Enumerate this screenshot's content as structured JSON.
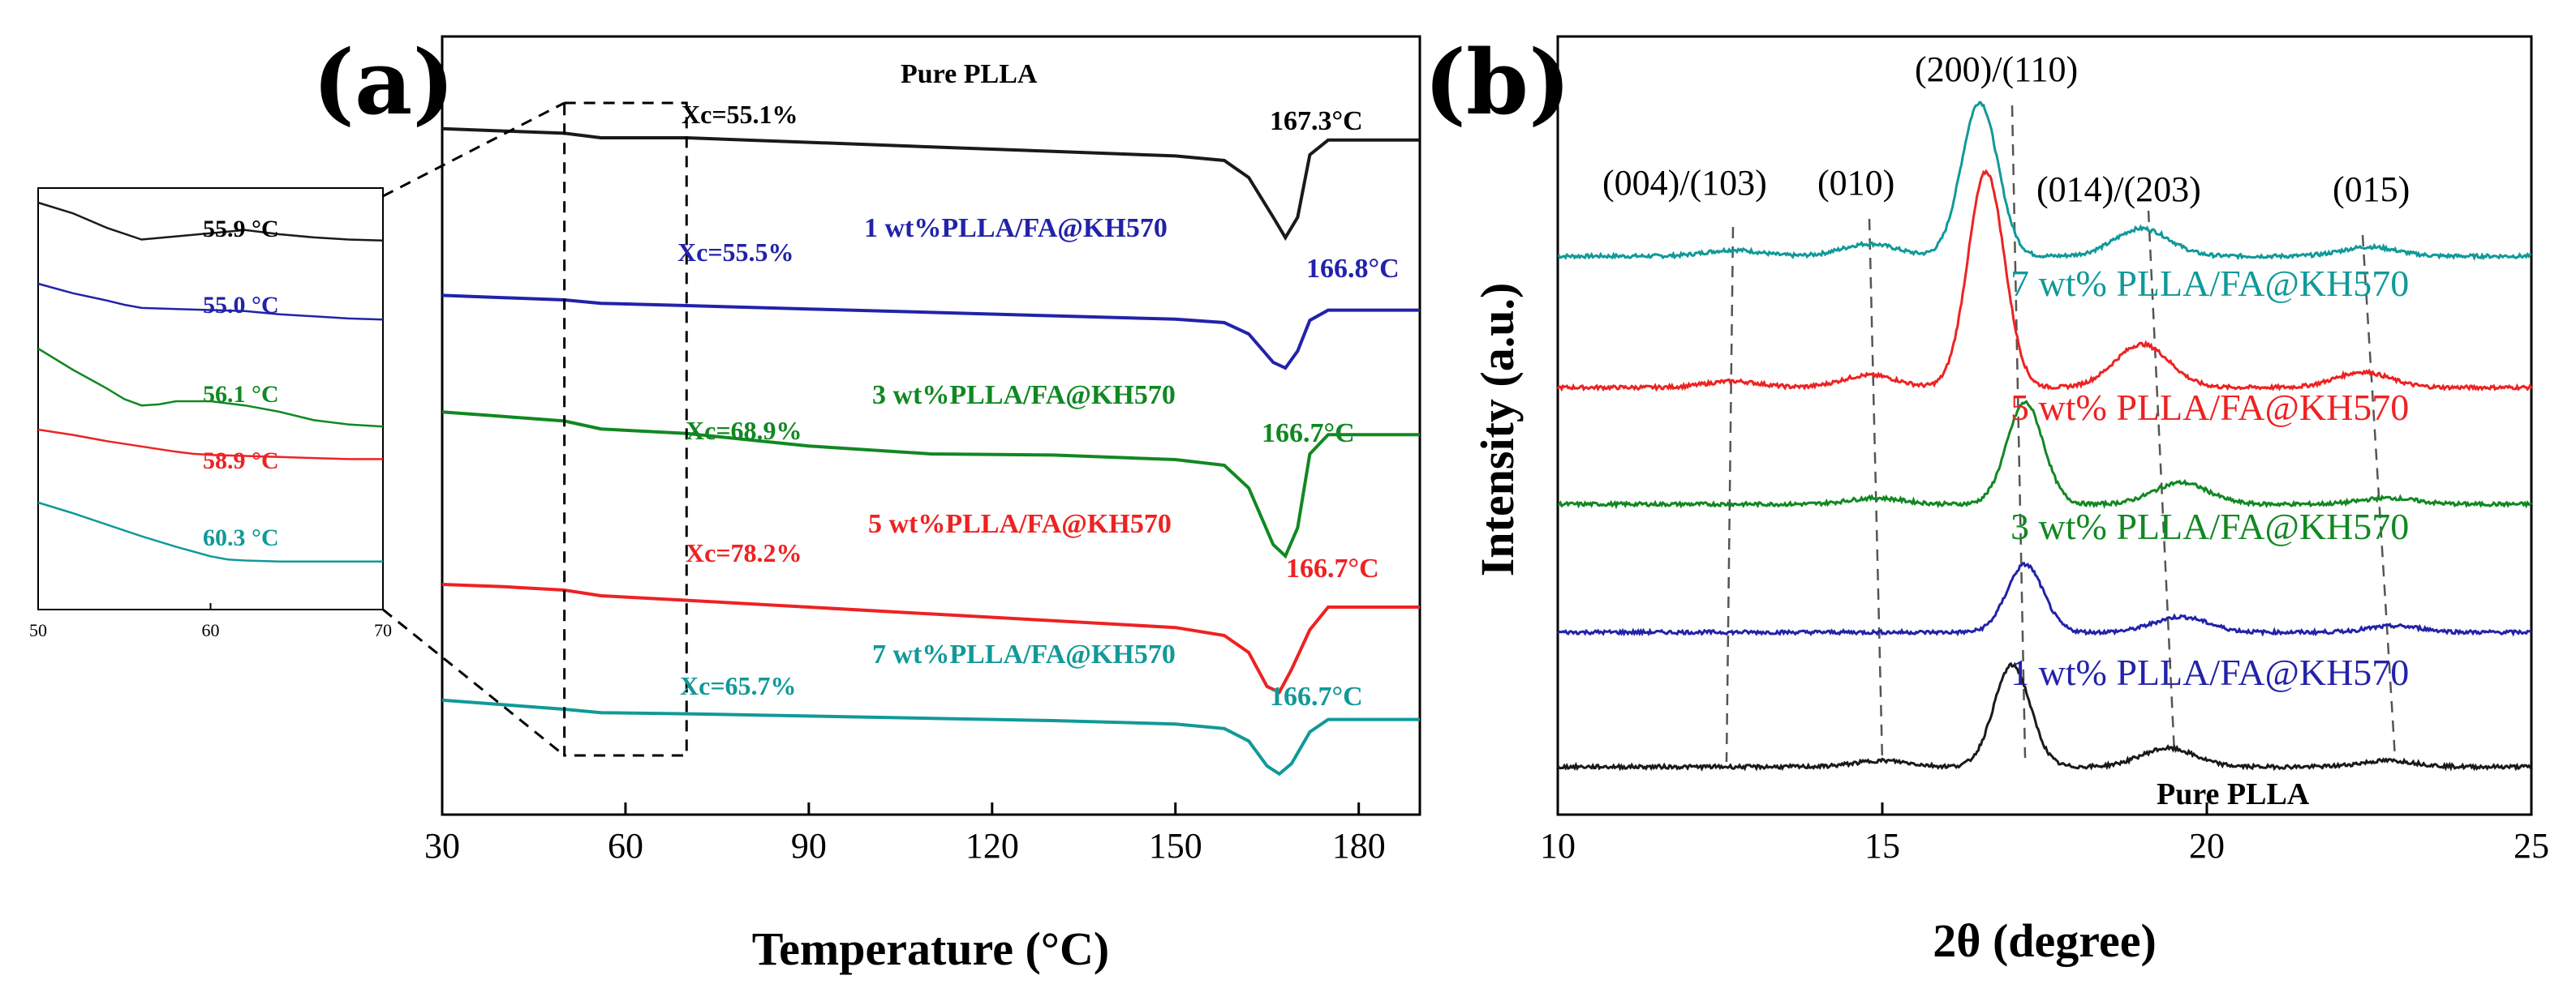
{
  "colors": {
    "black": "#1a1a1a",
    "blue": "#2222aa",
    "green": "#118822",
    "red": "#ee2222",
    "teal": "#119999"
  },
  "chart_data": [
    {
      "id": "a",
      "panel_label": "(a)",
      "type": "line",
      "title": "",
      "xlabel": "Temperature (°C)",
      "ylabel": "",
      "xlim": [
        30,
        190
      ],
      "xticks": [
        "30",
        "60",
        "90",
        "120",
        "150",
        "180"
      ],
      "xtick_values": [
        30,
        60,
        90,
        120,
        150,
        180
      ],
      "highlight_box": {
        "x_range": [
          50,
          70
        ]
      },
      "series": [
        {
          "name": "Pure PLLA",
          "color_key": "black",
          "sample_label": "Pure PLLA",
          "xc_label": "Xc=55.1%",
          "peak_label": "167.3°C",
          "peak_temp": 167.3,
          "points": [
            [
              30,
              0.8
            ],
            [
              40,
              0.6
            ],
            [
              50,
              0.4
            ],
            [
              56,
              0.0
            ],
            [
              70,
              0.0
            ],
            [
              90,
              -0.4
            ],
            [
              110,
              -0.8
            ],
            [
              130,
              -1.2
            ],
            [
              150,
              -1.6
            ],
            [
              158,
              -2.0
            ],
            [
              162,
              -3.5
            ],
            [
              166,
              -7.0
            ],
            [
              168,
              -8.8
            ],
            [
              170,
              -7.0
            ],
            [
              172,
              -1.5
            ],
            [
              175,
              -0.2
            ],
            [
              190,
              -0.2
            ]
          ]
        },
        {
          "name": "1 wt%PLLA/FA@KH570",
          "color_key": "blue",
          "sample_label": "1 wt%PLLA/FA@KH570",
          "xc_label": "Xc=55.5%",
          "peak_label": "166.8°C",
          "peak_temp": 166.8,
          "points": [
            [
              30,
              0.4
            ],
            [
              40,
              0.2
            ],
            [
              50,
              0.0
            ],
            [
              56,
              -0.3
            ],
            [
              70,
              -0.5
            ],
            [
              90,
              -0.8
            ],
            [
              110,
              -1.1
            ],
            [
              130,
              -1.4
            ],
            [
              150,
              -1.7
            ],
            [
              158,
              -2.0
            ],
            [
              162,
              -3.0
            ],
            [
              166,
              -5.5
            ],
            [
              168,
              -6.0
            ],
            [
              170,
              -4.5
            ],
            [
              172,
              -1.8
            ],
            [
              175,
              -0.9
            ],
            [
              190,
              -0.9
            ]
          ]
        },
        {
          "name": "3 wt%PLLA/FA@KH570",
          "color_key": "green",
          "sample_label": "3 wt%PLLA/FA@KH570",
          "xc_label": "Xc=68.9%",
          "peak_label": "166.7°C",
          "peak_temp": 166.7,
          "points": [
            [
              30,
              1.2
            ],
            [
              40,
              0.8
            ],
            [
              50,
              0.4
            ],
            [
              56,
              -0.3
            ],
            [
              70,
              -0.7
            ],
            [
              90,
              -1.8
            ],
            [
              110,
              -2.5
            ],
            [
              130,
              -2.6
            ],
            [
              150,
              -3.0
            ],
            [
              158,
              -3.5
            ],
            [
              162,
              -5.5
            ],
            [
              166,
              -10.5
            ],
            [
              168,
              -11.5
            ],
            [
              170,
              -9.0
            ],
            [
              172,
              -2.5
            ],
            [
              175,
              -0.8
            ],
            [
              190,
              -0.8
            ]
          ]
        },
        {
          "name": "5 wt%PLLA/FA@KH570",
          "color_key": "red",
          "sample_label": "5 wt%PLLA/FA@KH570",
          "xc_label": "Xc=78.2%",
          "peak_label": "166.7°C",
          "peak_temp": 166.7,
          "points": [
            [
              30,
              1.0
            ],
            [
              40,
              0.8
            ],
            [
              50,
              0.5
            ],
            [
              56,
              0.0
            ],
            [
              70,
              -0.4
            ],
            [
              90,
              -1.0
            ],
            [
              110,
              -1.6
            ],
            [
              130,
              -2.2
            ],
            [
              150,
              -2.8
            ],
            [
              158,
              -3.5
            ],
            [
              162,
              -5.0
            ],
            [
              165,
              -8.0
            ],
            [
              167,
              -8.5
            ],
            [
              169,
              -6.5
            ],
            [
              172,
              -3.0
            ],
            [
              175,
              -1.0
            ],
            [
              190,
              -1.0
            ]
          ]
        },
        {
          "name": "7 wt%PLLA/FA@KH570",
          "color_key": "teal",
          "sample_label": "7 wt%PLLA/FA@KH570",
          "xc_label": "Xc=65.7%",
          "peak_label": "166.7°C",
          "peak_temp": 166.7,
          "points": [
            [
              30,
              0.8
            ],
            [
              40,
              0.4
            ],
            [
              50,
              0.0
            ],
            [
              56,
              -0.3
            ],
            [
              70,
              -0.4
            ],
            [
              90,
              -0.6
            ],
            [
              110,
              -0.8
            ],
            [
              130,
              -1.0
            ],
            [
              150,
              -1.3
            ],
            [
              158,
              -1.7
            ],
            [
              162,
              -2.8
            ],
            [
              165,
              -5.0
            ],
            [
              167,
              -5.7
            ],
            [
              169,
              -4.8
            ],
            [
              172,
              -2.0
            ],
            [
              175,
              -0.9
            ],
            [
              190,
              -0.9
            ]
          ]
        }
      ],
      "inset": {
        "xlim": [
          50,
          70
        ],
        "xticks": [
          "50",
          "60",
          "70"
        ],
        "xtick_values": [
          50,
          60,
          70
        ],
        "series": [
          {
            "color_key": "black",
            "label": "55.9 °C",
            "points": [
              [
                50,
                0.0
              ],
              [
                52,
                -1.0
              ],
              [
                54,
                -2.4
              ],
              [
                56,
                -3.5
              ],
              [
                58,
                -3.2
              ],
              [
                60,
                -2.9
              ],
              [
                62,
                -2.6
              ],
              [
                64,
                -3.0
              ],
              [
                66,
                -3.3
              ],
              [
                68,
                -3.5
              ],
              [
                70,
                -3.6
              ]
            ]
          },
          {
            "color_key": "blue",
            "label": "55.0 °C",
            "points": [
              [
                50,
                0.0
              ],
              [
                52,
                -0.9
              ],
              [
                54,
                -1.6
              ],
              [
                55,
                -2.0
              ],
              [
                56,
                -2.3
              ],
              [
                58,
                -2.4
              ],
              [
                60,
                -2.5
              ],
              [
                62,
                -2.6
              ],
              [
                64,
                -2.9
              ],
              [
                66,
                -3.1
              ],
              [
                68,
                -3.3
              ],
              [
                70,
                -3.4
              ]
            ]
          },
          {
            "color_key": "green",
            "label": "56.1 °C",
            "points": [
              [
                50,
                0.0
              ],
              [
                52,
                -2.0
              ],
              [
                54,
                -3.8
              ],
              [
                55,
                -4.8
              ],
              [
                56,
                -5.4
              ],
              [
                57,
                -5.3
              ],
              [
                58,
                -5.0
              ],
              [
                60,
                -5.0
              ],
              [
                62,
                -5.4
              ],
              [
                64,
                -6.0
              ],
              [
                66,
                -6.8
              ],
              [
                68,
                -7.2
              ],
              [
                70,
                -7.4
              ]
            ]
          },
          {
            "color_key": "red",
            "label": "58.9 °C",
            "points": [
              [
                50,
                0.0
              ],
              [
                52,
                -0.5
              ],
              [
                54,
                -1.1
              ],
              [
                56,
                -1.6
              ],
              [
                58,
                -2.1
              ],
              [
                59,
                -2.3
              ],
              [
                60,
                -2.4
              ],
              [
                62,
                -2.5
              ],
              [
                64,
                -2.6
              ],
              [
                66,
                -2.7
              ],
              [
                68,
                -2.8
              ],
              [
                70,
                -2.8
              ]
            ]
          },
          {
            "color_key": "teal",
            "label": "60.3 °C",
            "points": [
              [
                50,
                0.0
              ],
              [
                52,
                -1.0
              ],
              [
                54,
                -2.1
              ],
              [
                56,
                -3.2
              ],
              [
                58,
                -4.2
              ],
              [
                60,
                -5.1
              ],
              [
                61,
                -5.4
              ],
              [
                62,
                -5.5
              ],
              [
                64,
                -5.6
              ],
              [
                66,
                -5.6
              ],
              [
                68,
                -5.6
              ],
              [
                70,
                -5.6
              ]
            ]
          }
        ]
      }
    },
    {
      "id": "b",
      "panel_label": "(b)",
      "type": "line",
      "title": "",
      "xlabel": "2θ (degree)",
      "ylabel": "Intensity (a.u.)",
      "xlim": [
        10,
        25
      ],
      "xticks": [
        "10",
        "15",
        "20",
        "25"
      ],
      "xtick_values": [
        10,
        15,
        20,
        25
      ],
      "plane_labels": [
        {
          "text": "(004)/(103)",
          "x": 12.4
        },
        {
          "text": "(010)",
          "x": 14.5
        },
        {
          "text": "(200)/(110)",
          "x": 17.0
        },
        {
          "text": "(014)/(203)",
          "x": 19.1
        },
        {
          "text": "(015)",
          "x": 22.5
        }
      ],
      "series": [
        {
          "name": "7 wt% PLLA/FA@KH570",
          "color_key": "teal",
          "label": "7 wt% PLLA/FA@KH570",
          "peaks": [
            [
              12.7,
              0.2
            ],
            [
              14.8,
              0.4
            ],
            [
              16.5,
              5.0
            ],
            [
              19.0,
              0.9
            ],
            [
              22.5,
              0.3
            ]
          ]
        },
        {
          "name": "5 wt% PLLA/FA@KH570",
          "color_key": "red",
          "label": "5 wt% PLLA/FA@KH570",
          "peaks": [
            [
              12.7,
              0.2
            ],
            [
              14.8,
              0.4
            ],
            [
              16.6,
              7.0
            ],
            [
              19.0,
              1.4
            ],
            [
              22.4,
              0.5
            ]
          ]
        },
        {
          "name": "3 wt% PLLA/FA@KH570",
          "color_key": "green",
          "label": "3 wt% PLLA/FA@KH570",
          "peaks": [
            [
              14.9,
              0.2
            ],
            [
              17.2,
              3.3
            ],
            [
              19.6,
              0.7
            ],
            [
              22.8,
              0.2
            ]
          ]
        },
        {
          "name": "1 wt% PLLA/FA@KH570",
          "color_key": "blue",
          "label": "1 wt% PLLA/FA@KH570",
          "peaks": [
            [
              17.2,
              2.2
            ],
            [
              19.6,
              0.5
            ],
            [
              22.9,
              0.2
            ]
          ]
        },
        {
          "name": "Pure PLLA",
          "color_key": "black",
          "label": "Pure PLLA",
          "peaks": [
            [
              15.0,
              0.2
            ],
            [
              17.0,
              3.3
            ],
            [
              19.4,
              0.6
            ],
            [
              22.8,
              0.2
            ]
          ]
        }
      ]
    }
  ]
}
